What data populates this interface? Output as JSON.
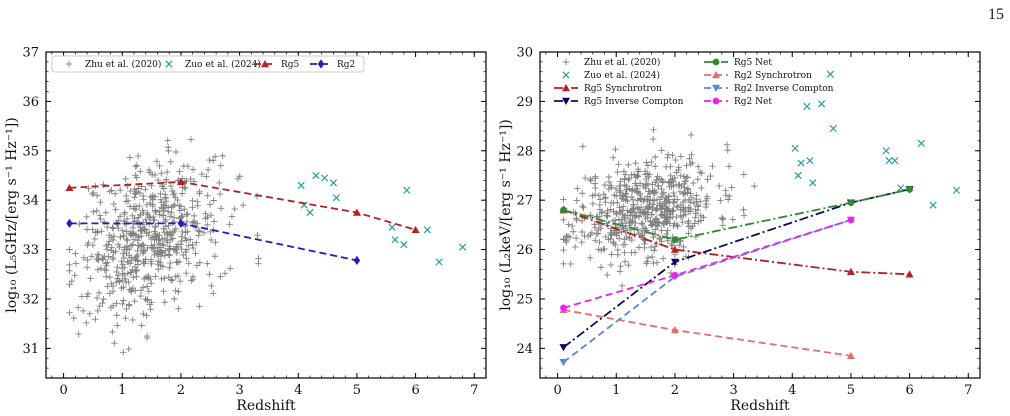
{
  "page_number": "15",
  "chart_data": [
    {
      "type": "scatter",
      "xlabel": "Redshift",
      "ylabel": "log₁₀ (L₅GHz/[erg s⁻¹ Hz⁻¹])",
      "xlim": [
        -0.3,
        7.2
      ],
      "ylim": [
        30.4,
        37
      ],
      "xticks": [
        0,
        1,
        2,
        3,
        4,
        5,
        6,
        7
      ],
      "yticks": [
        31,
        32,
        33,
        34,
        35,
        36,
        37
      ],
      "legend_position": "top",
      "series": [
        {
          "name": "Zhu et al. (2020)",
          "kind": "cloud",
          "marker": "plus",
          "color": "#808080",
          "cloud": {
            "xmean": 1.45,
            "xsd": 0.6,
            "xmin": 0.1,
            "xmax": 4.6,
            "ymean": 33.2,
            "ysd": 0.75,
            "slope": 0.35,
            "n": 600,
            "seed": 7
          }
        },
        {
          "name": "Zuo et al. (2024)",
          "kind": "points",
          "marker": "x",
          "color": "#2a9d9a",
          "x": [
            4.05,
            4.1,
            4.2,
            4.3,
            4.45,
            4.6,
            4.65,
            5.6,
            5.65,
            5.8,
            5.85,
            6.2,
            6.4,
            6.8
          ],
          "y": [
            34.3,
            33.9,
            33.75,
            34.5,
            34.45,
            34.35,
            34.05,
            33.45,
            33.2,
            33.1,
            34.2,
            33.4,
            32.75,
            33.05
          ]
        },
        {
          "name": "Rg5",
          "kind": "line",
          "marker": "triangle",
          "color": "#b22222",
          "dash": "7,4",
          "x": [
            0.1,
            2.0,
            5.0,
            6.0
          ],
          "y": [
            34.25,
            34.37,
            33.75,
            33.4
          ]
        },
        {
          "name": "Rg2",
          "kind": "line",
          "marker": "diamond",
          "color": "#1f1fbf",
          "dash": "7,4",
          "x": [
            0.1,
            2.0,
            5.0
          ],
          "y": [
            33.53,
            33.53,
            32.78
          ]
        }
      ]
    },
    {
      "type": "scatter",
      "xlabel": "Redshift",
      "ylabel": "log₁₀ (L₂keV/[erg s⁻¹ Hz⁻¹])",
      "xlim": [
        -0.3,
        7.2
      ],
      "ylim": [
        23.4,
        30
      ],
      "xticks": [
        0,
        1,
        2,
        3,
        4,
        5,
        6,
        7
      ],
      "yticks": [
        24,
        25,
        26,
        27,
        28,
        29,
        30
      ],
      "legend_position": "top-left",
      "series": [
        {
          "name": "Zhu et al. (2020)",
          "kind": "cloud",
          "marker": "plus",
          "color": "#808080",
          "cloud": {
            "xmean": 1.5,
            "xsd": 0.6,
            "xmin": 0.1,
            "xmax": 4.6,
            "ymean": 26.85,
            "ysd": 0.5,
            "slope": 0.2,
            "n": 600,
            "seed": 11
          }
        },
        {
          "name": "Zuo et al. (2024)",
          "kind": "points",
          "marker": "x",
          "color": "#2a9d9a",
          "x": [
            4.05,
            4.1,
            4.15,
            4.25,
            4.3,
            4.35,
            4.5,
            4.65,
            4.7,
            5.6,
            5.65,
            5.75,
            5.85,
            6.2,
            6.4,
            6.8
          ],
          "y": [
            28.05,
            27.5,
            27.75,
            28.9,
            27.8,
            27.35,
            28.95,
            29.55,
            28.45,
            28.0,
            27.8,
            27.8,
            27.25,
            28.15,
            26.9,
            27.2
          ]
        },
        {
          "name": "Rg5 Synchrotron",
          "kind": "line",
          "marker": "triangle",
          "color": "#b22222",
          "dash": "9,3,2,3",
          "x": [
            0.1,
            2.0,
            5.0,
            6.0
          ],
          "y": [
            26.8,
            26.0,
            25.55,
            25.5
          ]
        },
        {
          "name": "Rg5 Inverse Compton",
          "kind": "line",
          "marker": "triangle-down",
          "color": "#0b0b5a",
          "dash": "9,3,2,3",
          "x": [
            0.1,
            2.0,
            5.0,
            6.0
          ],
          "y": [
            24.02,
            25.75,
            26.95,
            27.22
          ]
        },
        {
          "name": "Rg5 Net",
          "kind": "line",
          "marker": "circle",
          "color": "#2e8b2e",
          "dash": "9,3,2,3",
          "x": [
            0.1,
            2.0,
            5.0,
            6.0
          ],
          "y": [
            26.8,
            26.2,
            26.95,
            27.22
          ]
        },
        {
          "name": "Rg2 Synchrotron",
          "kind": "line",
          "marker": "triangle",
          "color": "#e07070",
          "dash": "7,4",
          "x": [
            0.1,
            2.0,
            5.0
          ],
          "y": [
            24.78,
            24.37,
            23.85
          ]
        },
        {
          "name": "Rg2 Inverse Compton",
          "kind": "line",
          "marker": "triangle-down",
          "color": "#5a86d8",
          "dash": "7,4",
          "x": [
            0.1,
            2.0,
            5.0
          ],
          "y": [
            23.72,
            25.45,
            26.6
          ]
        },
        {
          "name": "Rg2 Net",
          "kind": "line",
          "marker": "circle",
          "color": "#ee22ee",
          "dash": "7,4",
          "x": [
            0.1,
            2.0,
            5.0
          ],
          "y": [
            24.82,
            25.48,
            26.6
          ]
        }
      ]
    }
  ]
}
